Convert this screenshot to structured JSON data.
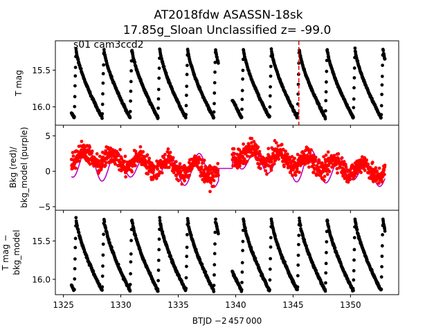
{
  "figure": {
    "title_line1": "AT2018fdw  ASASSN-18sk",
    "title_line2": "17.85g_Sloan Unclassified z= -99.0",
    "sector_label": "s01 cam3ccd2"
  },
  "chart_data": [
    {
      "type": "scatter",
      "panel": "top",
      "ylabel": "T mag",
      "y_inverted": true,
      "ylim": [
        16.25,
        15.1
      ],
      "yticks": [
        "15.5",
        "16.0"
      ],
      "series": [
        {
          "color": "#000000",
          "marker": "dot",
          "note": "periodic sawtooth light curve, ~2.4 d period, range 15.2-16.2 mag"
        }
      ],
      "vline": {
        "x": 1345.5,
        "color": "#ff0000",
        "style": "dashed"
      }
    },
    {
      "type": "scatter",
      "panel": "middle",
      "ylabel_line1": "Bkg (red)/",
      "ylabel_line2": "bkg_model (purple)",
      "ylim": [
        -5.5,
        6.5
      ],
      "yticks": [
        "−5",
        "0",
        "5"
      ],
      "series": [
        {
          "color": "#ff0000",
          "marker": "dot"
        },
        {
          "color": "#bf00bf",
          "marker": "line"
        }
      ]
    },
    {
      "type": "scatter",
      "panel": "bottom",
      "ylabel_line1": "T mag −",
      "ylabel_line2": "bkg_model",
      "y_inverted": true,
      "ylim": [
        16.2,
        15.1
      ],
      "yticks": [
        "15.5",
        "16.0"
      ],
      "series": [
        {
          "color": "#000000",
          "marker": "dot"
        }
      ]
    }
  ],
  "x_axis": {
    "xlabel": "BTJD −2 457 000",
    "xlim": [
      1324.3,
      1354.2
    ],
    "xticks": [
      "1325",
      "1330",
      "1335",
      "1340",
      "1345",
      "1350"
    ],
    "gap": [
      1338.5,
      1339.7
    ],
    "period": 2.43,
    "phase_zero": 1325.95
  }
}
